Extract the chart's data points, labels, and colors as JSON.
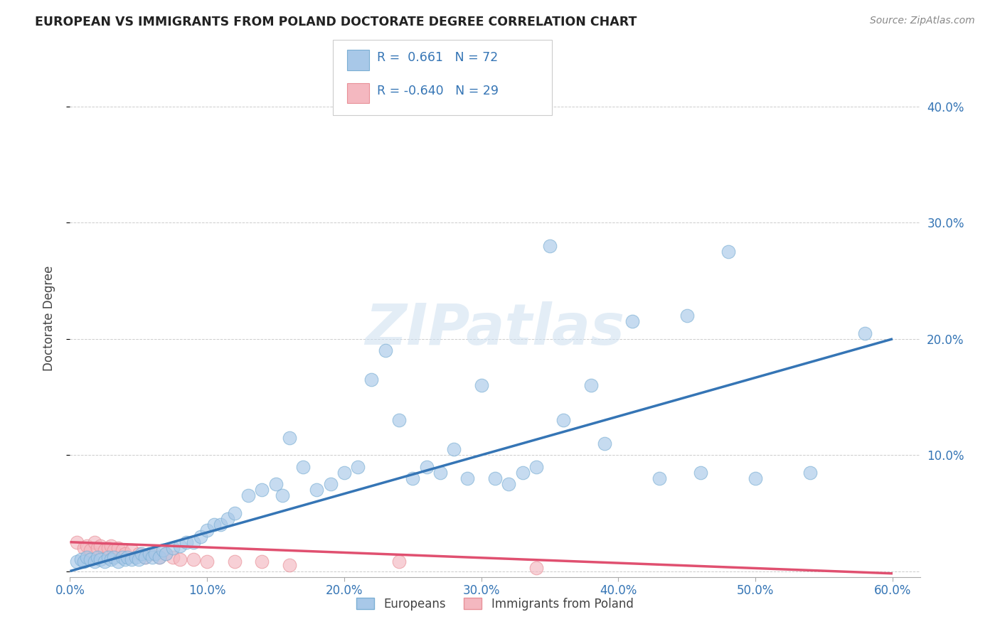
{
  "title": "EUROPEAN VS IMMIGRANTS FROM POLAND DOCTORATE DEGREE CORRELATION CHART",
  "source": "Source: ZipAtlas.com",
  "ylabel": "Doctorate Degree",
  "xlim": [
    0.0,
    0.62
  ],
  "ylim": [
    -0.005,
    0.44
  ],
  "xticks": [
    0.0,
    0.1,
    0.2,
    0.3,
    0.4,
    0.5,
    0.6
  ],
  "xtick_labels": [
    "0.0%",
    "10.0%",
    "20.0%",
    "30.0%",
    "40.0%",
    "50.0%",
    "60.0%"
  ],
  "yticks": [
    0.0,
    0.1,
    0.2,
    0.3,
    0.4
  ],
  "ytick_labels": [
    "",
    "10.0%",
    "20.0%",
    "30.0%",
    "40.0%"
  ],
  "blue_scatter_color": "#a8c8e8",
  "blue_scatter_edge": "#7bafd4",
  "pink_scatter_color": "#f4b8c0",
  "pink_scatter_edge": "#e89098",
  "blue_line_color": "#3575b5",
  "pink_line_color": "#e05070",
  "legend_label1": "Europeans",
  "legend_label2": "Immigrants from Poland",
  "watermark": "ZIPatlas",
  "blue_R": 0.661,
  "blue_N": 72,
  "pink_R": -0.64,
  "pink_N": 29,
  "europeans_x": [
    0.005,
    0.008,
    0.01,
    0.012,
    0.015,
    0.018,
    0.02,
    0.022,
    0.025,
    0.028,
    0.03,
    0.032,
    0.035,
    0.038,
    0.04,
    0.042,
    0.045,
    0.048,
    0.05,
    0.052,
    0.055,
    0.058,
    0.06,
    0.062,
    0.065,
    0.068,
    0.07,
    0.075,
    0.08,
    0.085,
    0.09,
    0.095,
    0.1,
    0.105,
    0.11,
    0.115,
    0.12,
    0.13,
    0.14,
    0.15,
    0.155,
    0.16,
    0.17,
    0.18,
    0.19,
    0.2,
    0.21,
    0.22,
    0.23,
    0.24,
    0.25,
    0.26,
    0.27,
    0.28,
    0.29,
    0.3,
    0.31,
    0.32,
    0.33,
    0.34,
    0.35,
    0.36,
    0.38,
    0.39,
    0.41,
    0.43,
    0.45,
    0.46,
    0.48,
    0.5,
    0.54,
    0.58
  ],
  "europeans_y": [
    0.008,
    0.01,
    0.008,
    0.012,
    0.01,
    0.008,
    0.012,
    0.01,
    0.008,
    0.012,
    0.01,
    0.012,
    0.008,
    0.012,
    0.01,
    0.012,
    0.01,
    0.012,
    0.01,
    0.015,
    0.012,
    0.015,
    0.012,
    0.015,
    0.012,
    0.018,
    0.015,
    0.02,
    0.022,
    0.025,
    0.025,
    0.03,
    0.035,
    0.04,
    0.04,
    0.045,
    0.05,
    0.065,
    0.07,
    0.075,
    0.065,
    0.115,
    0.09,
    0.07,
    0.075,
    0.085,
    0.09,
    0.165,
    0.19,
    0.13,
    0.08,
    0.09,
    0.085,
    0.105,
    0.08,
    0.16,
    0.08,
    0.075,
    0.085,
    0.09,
    0.28,
    0.13,
    0.16,
    0.11,
    0.215,
    0.08,
    0.22,
    0.085,
    0.275,
    0.08,
    0.085,
    0.205
  ],
  "poland_x": [
    0.005,
    0.01,
    0.012,
    0.015,
    0.018,
    0.02,
    0.022,
    0.025,
    0.028,
    0.03,
    0.032,
    0.035,
    0.038,
    0.04,
    0.045,
    0.05,
    0.055,
    0.06,
    0.065,
    0.07,
    0.075,
    0.08,
    0.09,
    0.1,
    0.12,
    0.14,
    0.16,
    0.24,
    0.34
  ],
  "poland_y": [
    0.025,
    0.02,
    0.022,
    0.018,
    0.025,
    0.02,
    0.022,
    0.018,
    0.02,
    0.022,
    0.018,
    0.02,
    0.018,
    0.015,
    0.018,
    0.015,
    0.012,
    0.015,
    0.012,
    0.015,
    0.012,
    0.01,
    0.01,
    0.008,
    0.008,
    0.008,
    0.005,
    0.008,
    0.003
  ],
  "blue_line_x0": 0.0,
  "blue_line_y0": 0.0,
  "blue_line_x1": 0.6,
  "blue_line_y1": 0.2,
  "pink_line_x0": 0.0,
  "pink_line_y0": 0.025,
  "pink_line_x1": 0.6,
  "pink_line_y1": -0.002
}
